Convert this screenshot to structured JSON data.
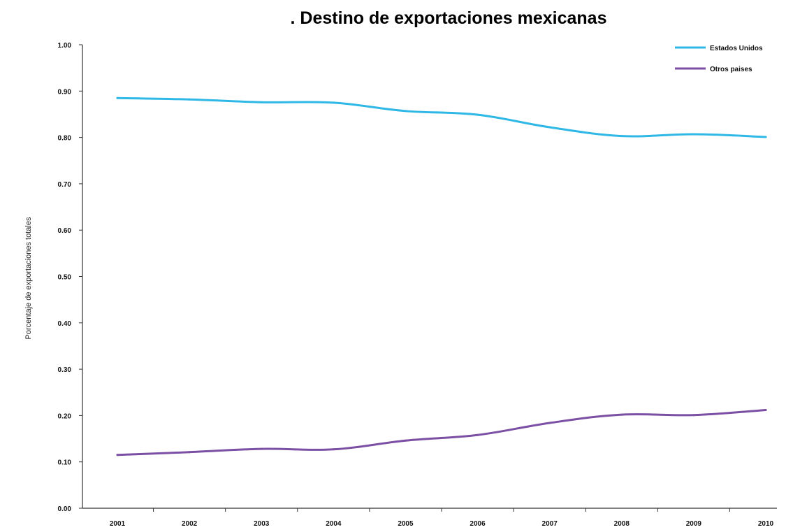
{
  "chart_data": {
    "type": "line",
    "title": ". Destino de exportaciones mexicanas",
    "xlabel": "",
    "ylabel": "Porcentaje de exportaciones totales",
    "categories": [
      "2001",
      "2002",
      "2003",
      "2004",
      "2005",
      "2006",
      "2007",
      "2008",
      "2009",
      "2010"
    ],
    "y_tick_labels": [
      "0.00",
      "0.10",
      "0.20",
      "0.30",
      "0.40",
      "0.50",
      "0.60",
      "0.70",
      "0.80",
      "0.90",
      "1.00"
    ],
    "ylim": [
      0,
      1
    ],
    "grid": false,
    "legend_position": "top-right",
    "series": [
      {
        "name": "Estados Unidos",
        "color": "#2fb8e6",
        "values": [
          0.885,
          0.882,
          0.876,
          0.875,
          0.857,
          0.849,
          0.822,
          0.803,
          0.807,
          0.801
        ]
      },
      {
        "name": "Otros paises",
        "color": "#7b4fa3",
        "values": [
          0.115,
          0.121,
          0.128,
          0.127,
          0.146,
          0.158,
          0.184,
          0.202,
          0.201,
          0.212
        ]
      }
    ]
  }
}
